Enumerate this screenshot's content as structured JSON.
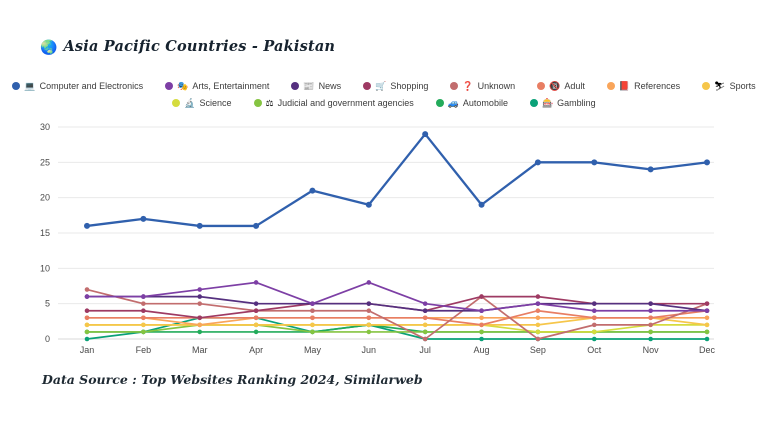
{
  "header": {
    "icon": "🌏",
    "title": "Asia Pacific Countries - Pakistan"
  },
  "footer": {
    "text": "Data Source : Top Websites Ranking 2024, Similarweb"
  },
  "axis": {
    "y_ticks": [
      0,
      5,
      10,
      15,
      20,
      25,
      30
    ]
  },
  "chart_data": {
    "type": "line",
    "title": "Asia Pacific Countries - Pakistan",
    "categories": [
      "Jan",
      "Feb",
      "Mar",
      "Apr",
      "May",
      "Jun",
      "Jul",
      "Aug",
      "Sep",
      "Oct",
      "Nov",
      "Dec"
    ],
    "xlabel": "",
    "ylabel": "",
    "ylim": [
      0,
      30
    ],
    "ytick_step": 5,
    "grid": true,
    "legend_position": "top",
    "legend_rows": [
      8,
      4
    ],
    "series": [
      {
        "name": "Computer and Electronics",
        "icon": "💻",
        "color": "#3060ad",
        "values": [
          16,
          17,
          16,
          16,
          21,
          19,
          29,
          19,
          25,
          25,
          24,
          25
        ]
      },
      {
        "name": "Arts, Entertainment",
        "icon": "🎭",
        "color": "#7d3fa5",
        "values": [
          6,
          6,
          7,
          8,
          5,
          8,
          5,
          4,
          5,
          4,
          4,
          4
        ]
      },
      {
        "name": "News",
        "icon": "📰",
        "color": "#55307f",
        "values": [
          6,
          6,
          6,
          5,
          5,
          5,
          4,
          4,
          5,
          5,
          5,
          4
        ]
      },
      {
        "name": "Shopping",
        "icon": "🛒",
        "color": "#9e3a63",
        "values": [
          4,
          4,
          3,
          4,
          5,
          5,
          4,
          6,
          6,
          5,
          5,
          5
        ]
      },
      {
        "name": "Unknown",
        "icon": "❓",
        "color": "#c26d6e",
        "values": [
          7,
          5,
          5,
          4,
          4,
          4,
          0,
          6,
          0,
          2,
          2,
          5
        ]
      },
      {
        "name": "Adult",
        "icon": "🔞",
        "color": "#e87e63",
        "values": [
          3,
          3,
          3,
          3,
          3,
          3,
          3,
          2,
          4,
          3,
          3,
          4
        ]
      },
      {
        "name": "References",
        "icon": "📕",
        "color": "#f9a55a",
        "values": [
          3,
          3,
          2,
          3,
          3,
          3,
          3,
          3,
          3,
          3,
          3,
          3
        ]
      },
      {
        "name": "Sports",
        "icon": "⛷",
        "color": "#f6c64a",
        "values": [
          2,
          2,
          2,
          2,
          2,
          2,
          2,
          2,
          2,
          3,
          3,
          2
        ]
      },
      {
        "name": "Science",
        "icon": "🔬",
        "color": "#d5dc3e",
        "values": [
          2,
          2,
          2,
          2,
          2,
          2,
          2,
          2,
          1,
          1,
          2,
          2
        ]
      },
      {
        "name": "Judicial and government agencies",
        "icon": "⚖",
        "color": "#85c441",
        "values": [
          1,
          1,
          2,
          2,
          1,
          1,
          1,
          1,
          1,
          1,
          1,
          1
        ]
      },
      {
        "name": "Automobile",
        "icon": "🚙",
        "color": "#23ab5b",
        "values": [
          1,
          1,
          1,
          1,
          1,
          2,
          1,
          1,
          1,
          1,
          1,
          1
        ]
      },
      {
        "name": "Gambling",
        "icon": "🎰",
        "color": "#0aa178",
        "values": [
          0,
          1,
          3,
          3,
          1,
          2,
          0,
          0,
          0,
          0,
          0,
          0
        ]
      }
    ]
  }
}
